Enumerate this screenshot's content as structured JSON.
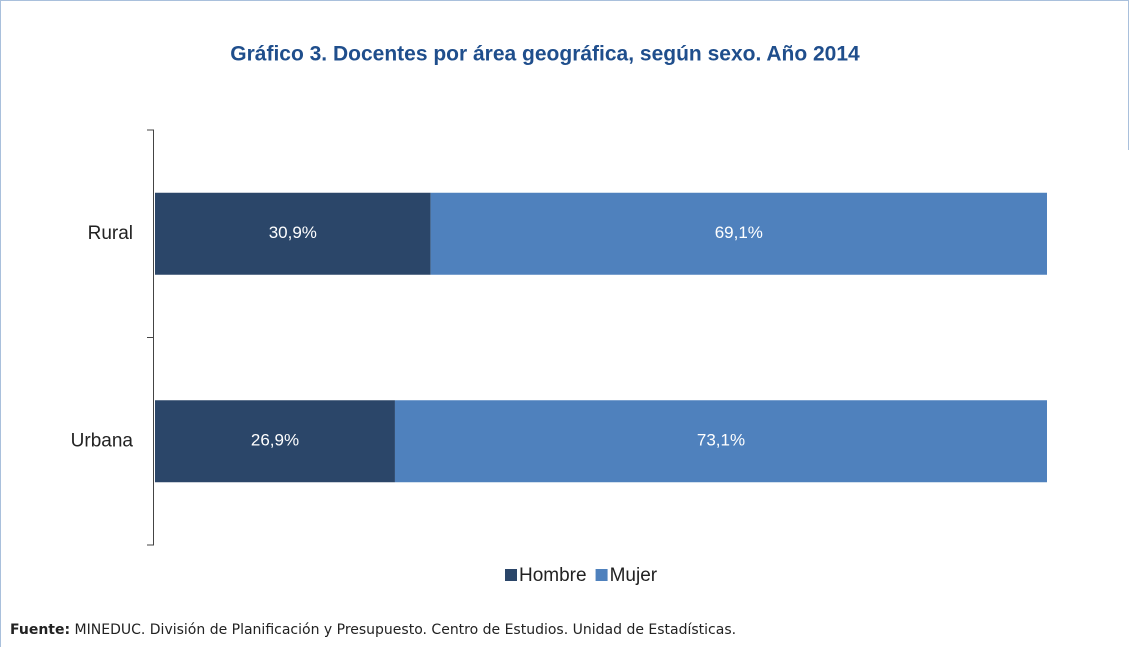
{
  "chart_data": {
    "type": "stacked_bar_horizontal",
    "title": "Gráfico 3. Docentes por área geográfica, según sexo. Año 2014",
    "categories": [
      "Rural",
      "Urbana"
    ],
    "series": [
      {
        "name": "Hombre",
        "color": "#2b4669",
        "values": [
          30.9,
          26.9
        ],
        "value_labels": [
          "30,9%",
          "26,9%"
        ]
      },
      {
        "name": "Mujer",
        "color": "#4f81bd",
        "values": [
          69.1,
          73.1
        ],
        "value_labels": [
          "69,1%",
          "73,1%"
        ]
      }
    ],
    "legend": "bottom"
  },
  "footer": {
    "source_label": "Fuente:",
    "source": "MINEDUC. División de Planificación y Presupuesto. Centro de Estudios. Unidad de Estadísticas."
  }
}
